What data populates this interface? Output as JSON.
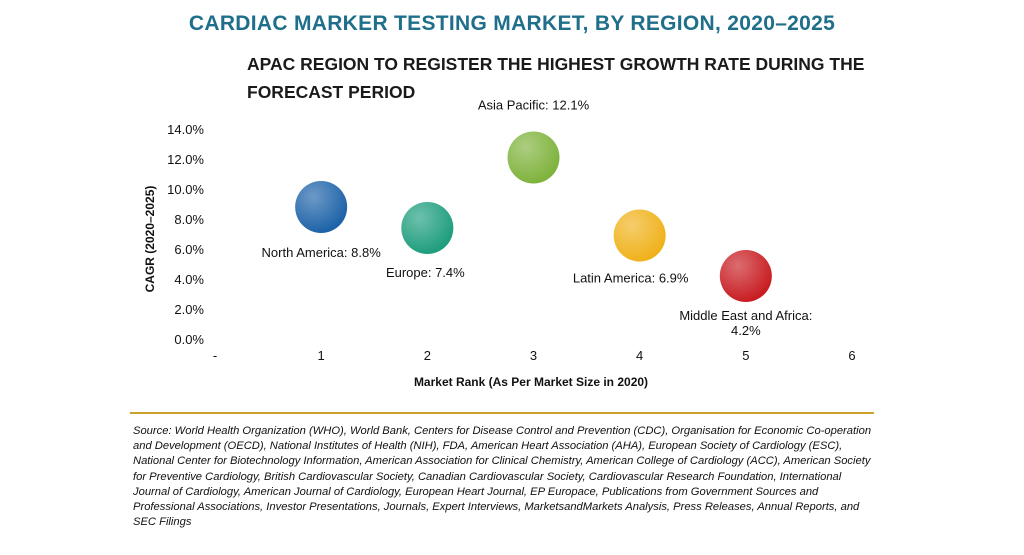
{
  "header": {
    "title": "CARDIAC MARKER TESTING MARKET, BY REGION, 2020–2025",
    "subtitle": "APAC REGION TO REGISTER THE HIGHEST GROWTH RATE DURING THE FORECAST PERIOD"
  },
  "footer": {
    "source": "Source: World Health Organization (WHO), World Bank, Centers for Disease Control and Prevention (CDC), Organisation for Economic Co-operation and Development (OECD), National Institutes of Health (NIH), FDA, American Heart Association (AHA), European Society of Cardiology (ESC), National Center for Biotechnology Information, American Association for Clinical Chemistry, American College of Cardiology (ACC), American Society for Preventive Cardiology, British Cardiovascular Society, Canadian Cardiovascular Society, Cardiovascular Research Foundation, International Journal of Cardiology, American Journal of Cardiology, European Heart Journal, EP Europace, Publications from Government Sources and Professional Associations, Investor Presentations, Journals, Expert Interviews, MarketsandMarkets Analysis, Press Releases, Annual Reports, and SEC Filings"
  },
  "chart_data": {
    "type": "scatter",
    "title": "CARDIAC MARKER TESTING MARKET, BY REGION, 2020–2025",
    "subtitle": "APAC REGION TO REGISTER THE HIGHEST GROWTH RATE DURING THE FORECAST PERIOD",
    "xlabel": "Market Rank (As Per Market Size in 2020)",
    "ylabel": "CAGR (2020–2025)",
    "xlim": [
      0,
      6
    ],
    "ylim": [
      0,
      14
    ],
    "x_tick_labels": [
      "-",
      "1",
      "2",
      "3",
      "4",
      "5",
      "6"
    ],
    "y_tick_labels": [
      "0.0%",
      "2.0%",
      "4.0%",
      "6.0%",
      "8.0%",
      "10.0%",
      "12.0%",
      "14.0%"
    ],
    "grid": false,
    "points": [
      {
        "name": "North America",
        "x": 1,
        "y": 8.8,
        "label": "North America: 8.8%",
        "color": "#1e63a8"
      },
      {
        "name": "Europe",
        "x": 2,
        "y": 7.4,
        "label": "Europe: 7.4%",
        "color": "#1f9e7e"
      },
      {
        "name": "Asia Pacific",
        "x": 3,
        "y": 12.1,
        "label": "Asia Pacific: 12.1%",
        "color": "#7fb33d"
      },
      {
        "name": "Latin America",
        "x": 4,
        "y": 6.9,
        "label": "Latin America: 6.9%",
        "color": "#f0b21c"
      },
      {
        "name": "Middle East and Africa",
        "x": 5,
        "y": 4.2,
        "label": [
          "Middle East and Africa:",
          "4.2%"
        ],
        "color": "#c81e23"
      }
    ]
  }
}
